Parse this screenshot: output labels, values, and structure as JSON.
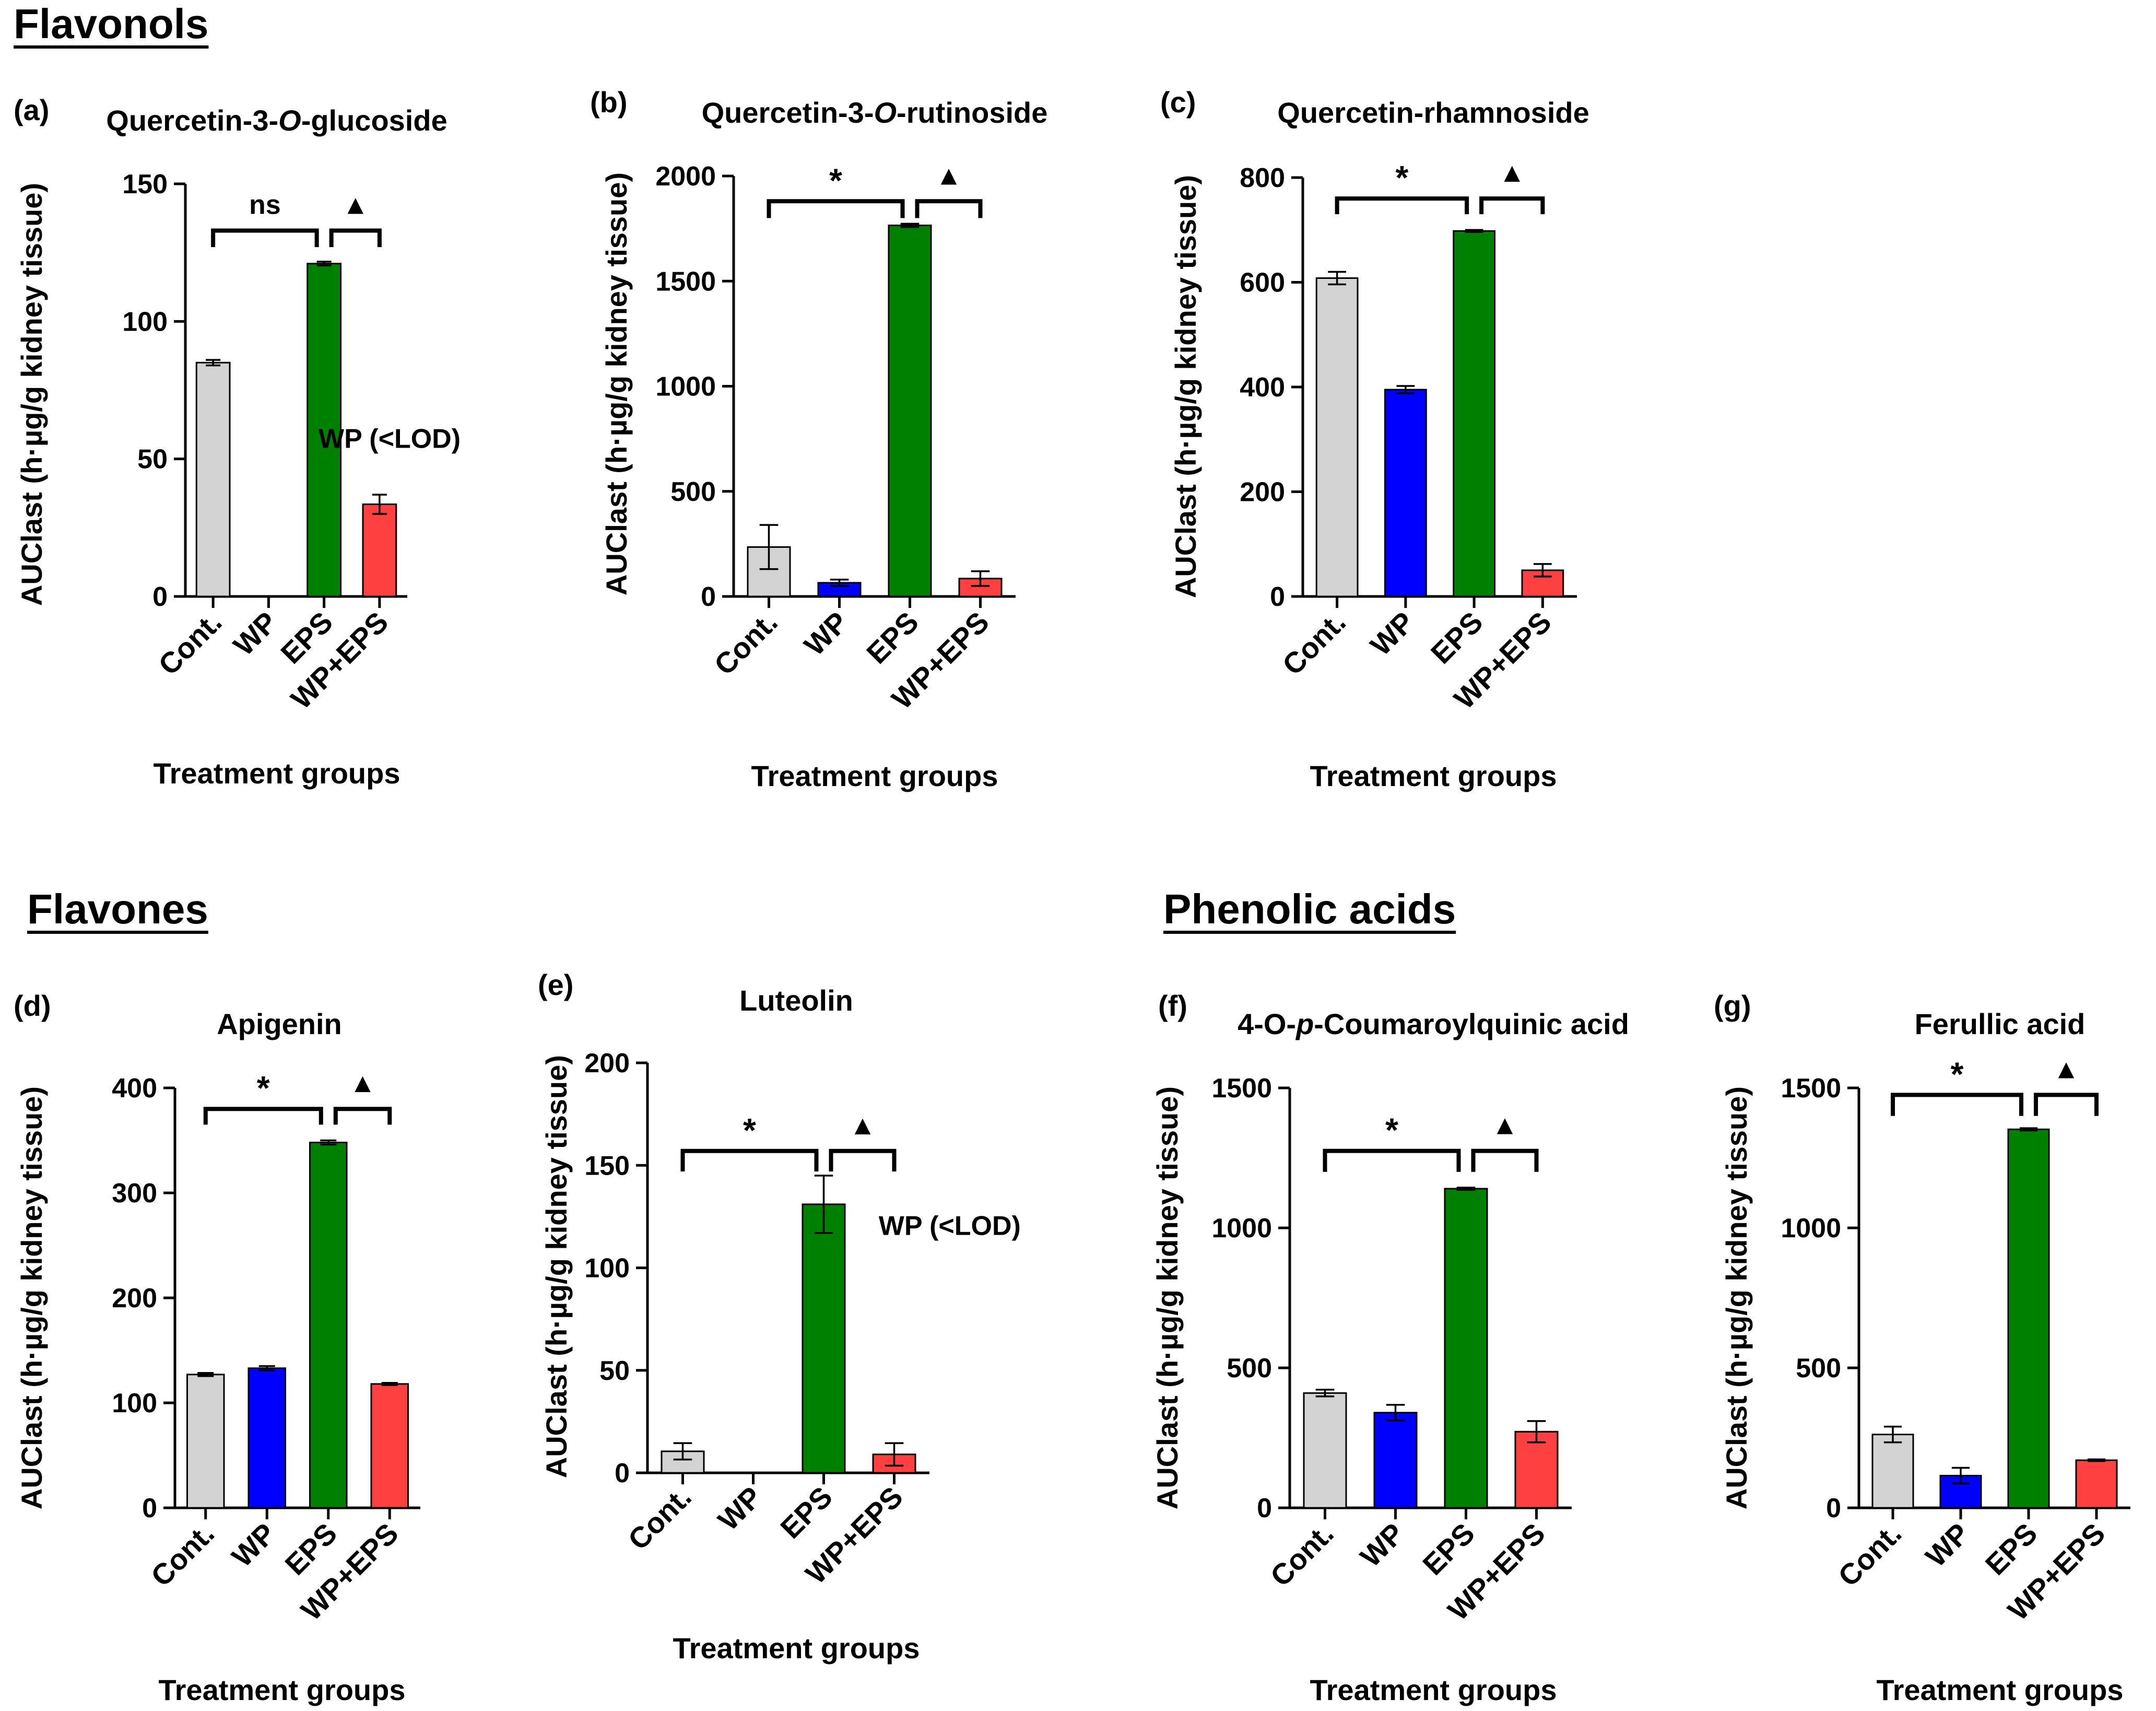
{
  "sections": {
    "flavonols": "Flavonols",
    "flavones": "Flavones",
    "phenolic": "Phenolic acids"
  },
  "colors": {
    "Cont.": "#d3d3d3",
    "WP": "#0000ff",
    "EPS": "#008000",
    "WP+EPS": "#ff4040"
  },
  "chart_data": [
    {
      "panel": "(a)",
      "type": "bar",
      "title_parts": [
        "Quercetin-3-",
        "O",
        "-glucoside"
      ],
      "ylabel": "AUClast (h·µg/g kidney tissue)",
      "xlabel": "Treatment groups",
      "categories": [
        "Cont.",
        "WP",
        "EPS",
        "WP+EPS"
      ],
      "values": [
        85,
        null,
        121,
        33.5
      ],
      "errors": [
        1,
        null,
        0.7,
        3.5
      ],
      "ylim": [
        0,
        150
      ],
      "yticks": [
        0,
        50,
        100,
        150
      ],
      "brackets": [
        {
          "from": 0,
          "to": 2,
          "label": "ns",
          "y": 133,
          "tip": 6
        },
        {
          "from": 2,
          "to": 3,
          "label": "▲",
          "y": 133,
          "tip": 6
        }
      ],
      "note": "WP (<LOD)",
      "note_pos": [
        0.6,
        0.64
      ]
    },
    {
      "panel": "(b)",
      "type": "bar",
      "title_parts": [
        "Quercetin-3-",
        "O",
        "-rutinoside"
      ],
      "ylabel": "AUClast (h·µg/g kidney tissue)",
      "xlabel": "Treatment groups",
      "categories": [
        "Cont.",
        "WP",
        "EPS",
        "WP+EPS"
      ],
      "values": [
        235,
        65,
        1765,
        85
      ],
      "errors": [
        105,
        15,
        8,
        35
      ],
      "ylim": [
        0,
        2000
      ],
      "yticks": [
        0,
        500,
        1000,
        1500,
        2000
      ],
      "brackets": [
        {
          "from": 0,
          "to": 2,
          "label": "*",
          "y": 1880,
          "tip": 80
        },
        {
          "from": 2,
          "to": 3,
          "label": "▲",
          "y": 1880,
          "tip": 80
        }
      ]
    },
    {
      "panel": "(c)",
      "type": "bar",
      "title_parts": [
        "Quercetin-rhamnoside"
      ],
      "ylabel": "AUClast (h·µg/g kidney tissue)",
      "xlabel": "Treatment groups",
      "categories": [
        "Cont.",
        "WP",
        "EPS",
        "WP+EPS"
      ],
      "values": [
        608,
        395,
        698,
        50
      ],
      "errors": [
        12,
        7,
        2,
        12
      ],
      "ylim": [
        0,
        800
      ],
      "yticks": [
        0,
        200,
        400,
        600,
        800
      ],
      "brackets": [
        {
          "from": 0,
          "to": 2,
          "label": "*",
          "y": 760,
          "tip": 30
        },
        {
          "from": 2,
          "to": 3,
          "label": "▲",
          "y": 760,
          "tip": 30
        }
      ]
    },
    {
      "panel": "(d)",
      "type": "bar",
      "title_parts": [
        "Apigenin"
      ],
      "ylabel": "AUClast (h·µg/g kidney tissue)",
      "xlabel": "Treatment groups",
      "categories": [
        "Cont.",
        "WP",
        "EPS",
        "WP+EPS"
      ],
      "values": [
        127,
        133,
        348,
        118
      ],
      "errors": [
        1.5,
        2,
        2,
        1
      ],
      "ylim": [
        0,
        400
      ],
      "yticks": [
        0,
        100,
        200,
        300,
        400
      ],
      "brackets": [
        {
          "from": 0,
          "to": 2,
          "label": "*",
          "y": 380,
          "tip": 15
        },
        {
          "from": 2,
          "to": 3,
          "label": "▲",
          "y": 380,
          "tip": 15
        }
      ]
    },
    {
      "panel": "(e)",
      "type": "bar",
      "title_parts": [
        "Luteolin"
      ],
      "ylabel": "AUClast (h·µg/g kidney tissue)",
      "xlabel": "Treatment groups",
      "categories": [
        "Cont.",
        "WP",
        "EPS",
        "WP+EPS"
      ],
      "values": [
        10.5,
        null,
        131,
        9
      ],
      "errors": [
        4,
        null,
        14,
        5.5
      ],
      "ylim": [
        0,
        200
      ],
      "yticks": [
        0,
        50,
        100,
        150,
        200
      ],
      "brackets": [
        {
          "from": 0,
          "to": 2,
          "label": "*",
          "y": 157,
          "tip": 10
        },
        {
          "from": 2,
          "to": 3,
          "label": "▲",
          "y": 157,
          "tip": 10
        }
      ],
      "note": "WP (<LOD)",
      "note_pos": [
        0.82,
        0.42
      ]
    },
    {
      "panel": "(f)",
      "type": "bar",
      "title_parts": [
        "4-O-",
        "p",
        "-Coumaroylquinic acid"
      ],
      "ylabel": "AUClast (h·µg/g kidney tissue)",
      "xlabel": "Treatment groups",
      "categories": [
        "Cont.",
        "WP",
        "EPS",
        "WP+EPS"
      ],
      "values": [
        410,
        340,
        1140,
        272
      ],
      "errors": [
        12,
        28,
        4,
        38
      ],
      "ylim": [
        0,
        1500
      ],
      "yticks": [
        0,
        500,
        1000,
        1500
      ],
      "brackets": [
        {
          "from": 0,
          "to": 2,
          "label": "*",
          "y": 1275,
          "tip": 75
        },
        {
          "from": 2,
          "to": 3,
          "label": "▲",
          "y": 1275,
          "tip": 75
        }
      ]
    },
    {
      "panel": "(g)",
      "type": "bar",
      "title_parts": [
        "Ferullic acid"
      ],
      "ylabel": "AUClast (h·µg/g kidney tissue)",
      "xlabel": "Treatment groups",
      "categories": [
        "Cont.",
        "WP",
        "EPS",
        "WP+EPS"
      ],
      "values": [
        262,
        115,
        1352,
        170
      ],
      "errors": [
        28,
        28,
        4,
        3
      ],
      "ylim": [
        0,
        1500
      ],
      "yticks": [
        0,
        500,
        1000,
        1500
      ],
      "brackets": [
        {
          "from": 0,
          "to": 2,
          "label": "*",
          "y": 1475,
          "tip": 75
        },
        {
          "from": 2,
          "to": 3,
          "label": "▲",
          "y": 1475,
          "tip": 75
        }
      ]
    }
  ]
}
